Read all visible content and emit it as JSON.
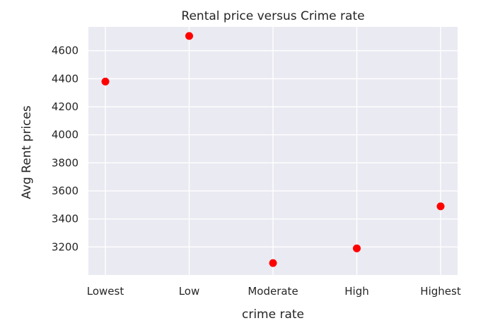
{
  "chart_data": {
    "type": "scatter",
    "title": "Rental price versus Crime rate",
    "xlabel": "crime rate",
    "ylabel": "Avg Rent prices",
    "categories": [
      "Lowest",
      "Low",
      "Moderate",
      "High",
      "Highest"
    ],
    "values": [
      4380,
      4705,
      3085,
      3190,
      3490
    ],
    "yticks": [
      3200,
      3400,
      3600,
      3800,
      4000,
      4200,
      4400,
      4600
    ],
    "ylim": [
      3000,
      4770
    ],
    "grid": true,
    "colors": {
      "background": "#EAEAF2",
      "grid": "#FFFFFF",
      "marker": "#FF0000",
      "text": "#262626"
    }
  }
}
